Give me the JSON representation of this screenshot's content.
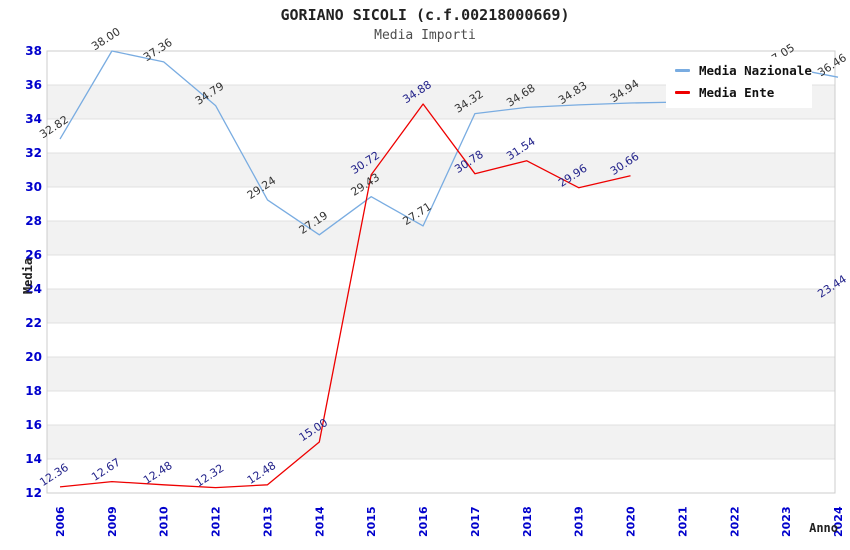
{
  "chart_data": {
    "type": "line",
    "title": "GORIANO SICOLI (c.f.00218000669)",
    "subtitle": "Media Importi",
    "xlabel": "Anno",
    "ylabel": "Media",
    "ylim": [
      12,
      38
    ],
    "ytick_step": 2,
    "grid": "horizontal-bands",
    "legend_position": "top-right",
    "axis_tick_color": "#0000cc",
    "band_gray": "#f2f2f2",
    "band_white": "#ffffff",
    "grid_color": "#e0e0e0",
    "border_color": "#cccccc",
    "x_categories": [
      "2006",
      "2009",
      "2010",
      "2012",
      "2013",
      "2014",
      "2015",
      "2016",
      "2017",
      "2018",
      "2019",
      "2020",
      "2021",
      "2022",
      "2023",
      "2024"
    ],
    "series": [
      {
        "name": "Media Nazionale",
        "color": "#79ace1",
        "label_color": "#333333",
        "values": [
          32.82,
          38.0,
          37.36,
          34.79,
          29.24,
          27.19,
          29.43,
          27.71,
          34.32,
          34.68,
          34.83,
          34.94,
          35.0,
          35.15,
          37.05,
          36.46
        ],
        "labels": [
          "32.82",
          "38.00",
          "37.36",
          "34.79",
          "29.24",
          "27.19",
          "29.43",
          "27.71",
          "34.32",
          "34.68",
          "34.83",
          "34.94",
          "",
          "",
          "37.05",
          "36.46"
        ]
      },
      {
        "name": "Media Ente",
        "color": "#ee0000",
        "label_color": "#22228a",
        "values": [
          12.36,
          12.67,
          12.48,
          12.32,
          12.48,
          15.0,
          30.72,
          34.88,
          30.78,
          31.54,
          29.96,
          30.66,
          null,
          null,
          null,
          23.44
        ],
        "labels": [
          "12.36",
          "12.67",
          "12.48",
          "12.32",
          "12.48",
          "15.00",
          "30.72",
          "34.88",
          "30.78",
          "31.54",
          "29.96",
          "30.66",
          "",
          "",
          "",
          "23.44"
        ]
      }
    ]
  }
}
